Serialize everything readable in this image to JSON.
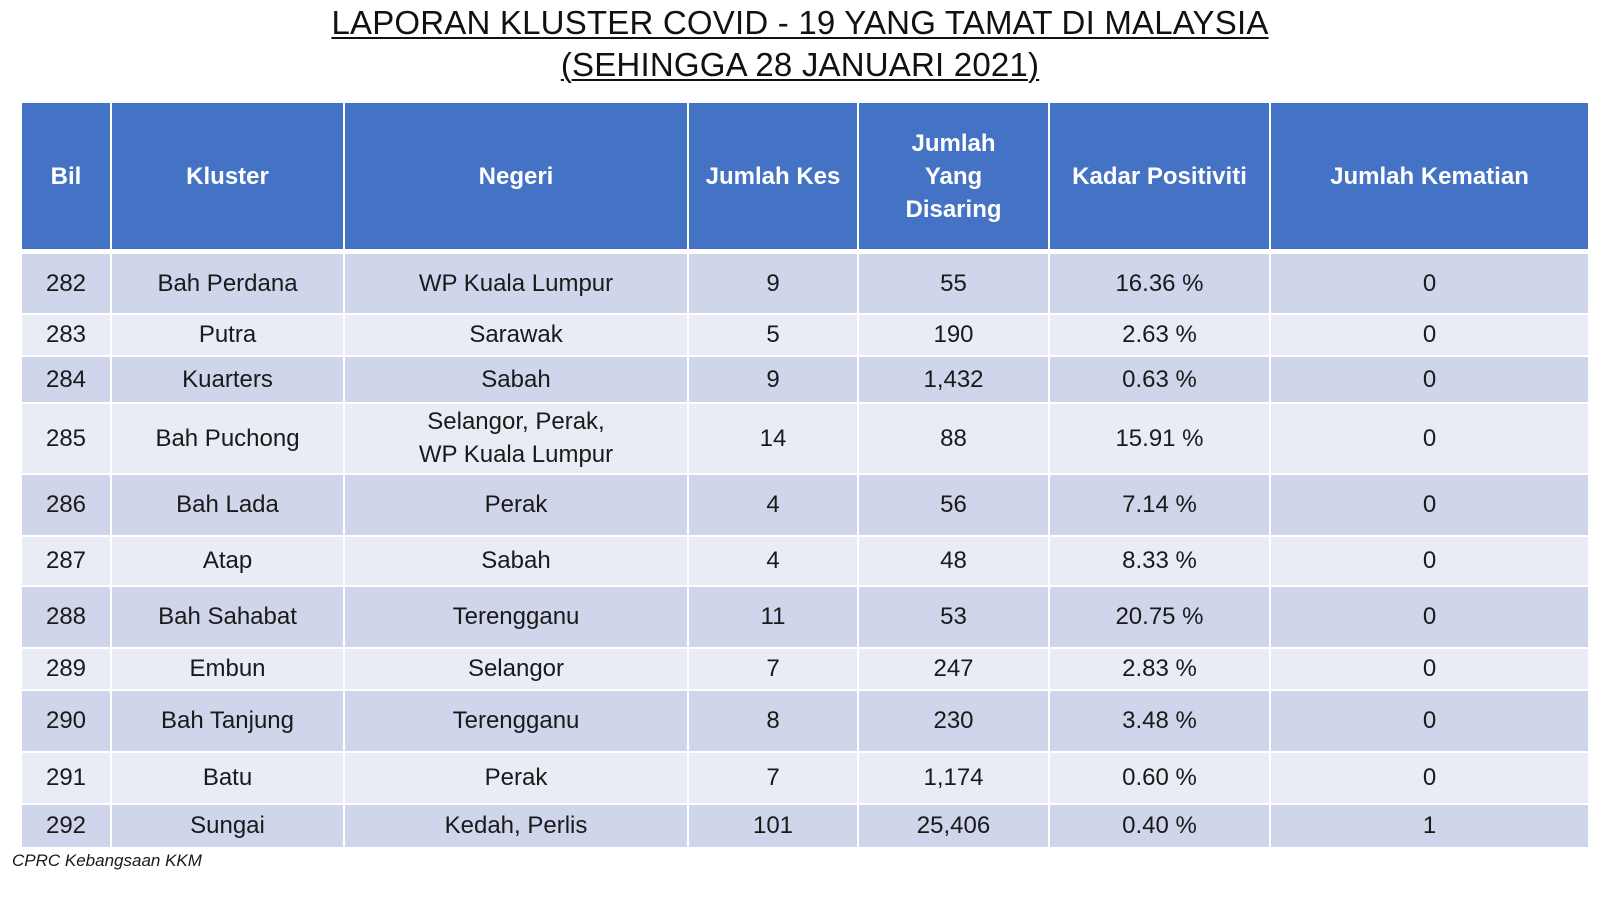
{
  "title": {
    "line1": "LAPORAN KLUSTER COVID - 19 YANG TAMAT DI MALAYSIA",
    "line2": "(SEHINGGA 28 JANUARI 2021)"
  },
  "table": {
    "headers": [
      "Bil",
      "Kluster",
      "Negeri",
      "Jumlah Kes",
      "Jumlah Yang Disaring",
      "Kadar Positiviti",
      "Jumlah Kematian"
    ],
    "rows": [
      [
        "282",
        "Bah Perdana",
        "WP Kuala Lumpur",
        "9",
        "55",
        "16.36 %",
        "0"
      ],
      [
        "283",
        "Putra",
        "Sarawak",
        "5",
        "190",
        "2.63 %",
        "0"
      ],
      [
        "284",
        "Kuarters",
        "Sabah",
        "9",
        "1,432",
        "0.63 %",
        "0"
      ],
      [
        "285",
        "Bah Puchong",
        "Selangor, Perak,\nWP Kuala Lumpur",
        "14",
        "88",
        "15.91 %",
        "0"
      ],
      [
        "286",
        "Bah Lada",
        "Perak",
        "4",
        "56",
        "7.14 %",
        "0"
      ],
      [
        "287",
        "Atap",
        "Sabah",
        "4",
        "48",
        "8.33 %",
        "0"
      ],
      [
        "288",
        "Bah Sahabat",
        "Terengganu",
        "11",
        "53",
        "20.75 %",
        "0"
      ],
      [
        "289",
        "Embun",
        "Selangor",
        "7",
        "247",
        "2.83 %",
        "0"
      ],
      [
        "290",
        "Bah Tanjung",
        "Terengganu",
        "8",
        "230",
        "3.48 %",
        "0"
      ],
      [
        "291",
        "Batu",
        "Perak",
        "7",
        "1,174",
        "0.60 %",
        "0"
      ],
      [
        "292",
        "Sungai",
        "Kedah, Perlis",
        "101",
        "25,406",
        "0.40 %",
        "1"
      ]
    ]
  },
  "source": "CPRC Kebangsaan KKM",
  "colors": {
    "header_bg": "#4472c4",
    "row_dark": "#cfd5ea",
    "row_light": "#e9ebf5"
  }
}
